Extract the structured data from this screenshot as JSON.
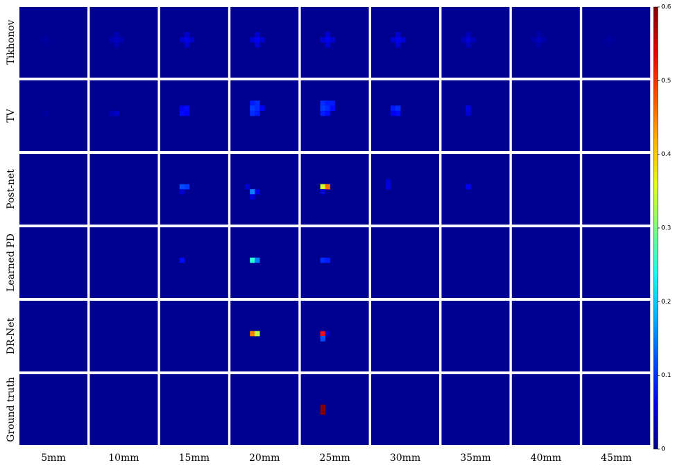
{
  "chart_data": {
    "type": "heatmap",
    "rows": [
      "Tikhonov",
      "TV",
      "Post-net",
      "Learned PD",
      "DR-Net",
      "Ground truth"
    ],
    "columns": [
      "5mm",
      "10mm",
      "15mm",
      "20mm",
      "25mm",
      "30mm",
      "35mm",
      "40mm",
      "45mm"
    ],
    "colormap": "jet",
    "grid_size": 14,
    "background": 0.01,
    "clim": [
      0,
      0.6
    ],
    "cticks": [
      0,
      0.1,
      0.2,
      0.3,
      0.4,
      0.5,
      0.6
    ],
    "panels": [
      [
        [
          [
            5,
            6,
            0.02
          ],
          [
            4,
            6,
            0.015
          ],
          [
            6,
            6,
            0.015
          ],
          [
            5,
            5,
            0.015
          ],
          [
            5,
            7,
            0.015
          ]
        ],
        [
          [
            5,
            6,
            0.04
          ],
          [
            4,
            6,
            0.03
          ],
          [
            6,
            6,
            0.03
          ],
          [
            5,
            5,
            0.03
          ],
          [
            5,
            7,
            0.03
          ]
        ],
        [
          [
            5,
            6,
            0.06
          ],
          [
            4,
            6,
            0.045
          ],
          [
            6,
            6,
            0.045
          ],
          [
            5,
            5,
            0.045
          ],
          [
            5,
            7,
            0.045
          ]
        ],
        [
          [
            5,
            6,
            0.07
          ],
          [
            4,
            6,
            0.05
          ],
          [
            6,
            6,
            0.05
          ],
          [
            5,
            5,
            0.05
          ],
          [
            5,
            7,
            0.05
          ]
        ],
        [
          [
            5,
            6,
            0.065
          ],
          [
            4,
            6,
            0.05
          ],
          [
            6,
            6,
            0.05
          ],
          [
            5,
            5,
            0.05
          ],
          [
            5,
            7,
            0.05
          ]
        ],
        [
          [
            5,
            6,
            0.065
          ],
          [
            4,
            6,
            0.05
          ],
          [
            6,
            6,
            0.05
          ],
          [
            5,
            5,
            0.05
          ],
          [
            5,
            7,
            0.05
          ]
        ],
        [
          [
            5,
            6,
            0.05
          ],
          [
            4,
            6,
            0.035
          ],
          [
            6,
            6,
            0.035
          ],
          [
            5,
            5,
            0.035
          ],
          [
            5,
            7,
            0.035
          ]
        ],
        [
          [
            5,
            6,
            0.035
          ],
          [
            4,
            6,
            0.025
          ],
          [
            6,
            6,
            0.025
          ],
          [
            5,
            5,
            0.025
          ],
          [
            5,
            7,
            0.025
          ]
        ],
        [
          [
            5,
            6,
            0.02
          ],
          [
            4,
            6,
            0.015
          ],
          [
            6,
            6,
            0.015
          ],
          [
            5,
            5,
            0.015
          ],
          [
            5,
            7,
            0.015
          ]
        ]
      ],
      [
        [
          [
            5,
            6,
            0.02
          ]
        ],
        [
          [
            5,
            6,
            0.045
          ],
          [
            4,
            6,
            0.03
          ]
        ],
        [
          [
            4,
            5,
            0.07
          ],
          [
            5,
            5,
            0.08
          ],
          [
            4,
            6,
            0.08
          ],
          [
            5,
            6,
            0.07
          ]
        ],
        [
          [
            4,
            4,
            0.09
          ],
          [
            5,
            4,
            0.1
          ],
          [
            4,
            5,
            0.11
          ],
          [
            5,
            5,
            0.1
          ],
          [
            4,
            6,
            0.1
          ],
          [
            5,
            6,
            0.09
          ],
          [
            6,
            5,
            0.07
          ]
        ],
        [
          [
            4,
            4,
            0.1
          ],
          [
            5,
            4,
            0.09
          ],
          [
            6,
            4,
            0.09
          ],
          [
            4,
            5,
            0.11
          ],
          [
            5,
            5,
            0.1
          ],
          [
            6,
            5,
            0.08
          ],
          [
            4,
            6,
            0.09
          ],
          [
            5,
            6,
            0.08
          ]
        ],
        [
          [
            4,
            5,
            0.09
          ],
          [
            5,
            5,
            0.1
          ],
          [
            5,
            6,
            0.08
          ],
          [
            4,
            6,
            0.07
          ]
        ],
        [
          [
            5,
            5,
            0.06
          ],
          [
            5,
            6,
            0.05
          ]
        ],
        [],
        []
      ],
      [
        [],
        [],
        [
          [
            4,
            6,
            0.12
          ],
          [
            5,
            6,
            0.11
          ],
          [
            4,
            7,
            0.05
          ]
        ],
        [
          [
            4,
            7,
            0.15
          ],
          [
            3,
            6,
            0.05
          ],
          [
            5,
            7,
            0.06
          ],
          [
            4,
            8,
            0.05
          ]
        ],
        [
          [
            4,
            6,
            0.35
          ],
          [
            5,
            6,
            0.46
          ],
          [
            4,
            7,
            0.05
          ]
        ],
        [
          [
            3,
            5,
            0.05
          ],
          [
            3,
            6,
            0.06
          ]
        ],
        [
          [
            5,
            6,
            0.07
          ]
        ],
        [],
        []
      ],
      [
        [],
        [],
        [
          [
            4,
            6,
            0.08
          ]
        ],
        [
          [
            4,
            6,
            0.25
          ],
          [
            5,
            6,
            0.15
          ]
        ],
        [
          [
            4,
            6,
            0.1
          ],
          [
            5,
            6,
            0.09
          ]
        ],
        [],
        [],
        [],
        []
      ],
      [
        [],
        [],
        [],
        [
          [
            4,
            6,
            0.45
          ],
          [
            5,
            6,
            0.33
          ]
        ],
        [
          [
            4,
            6,
            0.52
          ],
          [
            4,
            7,
            0.12
          ],
          [
            5,
            6,
            0.04
          ]
        ],
        [],
        [],
        [],
        []
      ],
      [
        [],
        [],
        [],
        [],
        [
          [
            4,
            6,
            0.6
          ],
          [
            4,
            7,
            0.6
          ]
        ],
        [],
        [],
        [],
        []
      ]
    ]
  }
}
